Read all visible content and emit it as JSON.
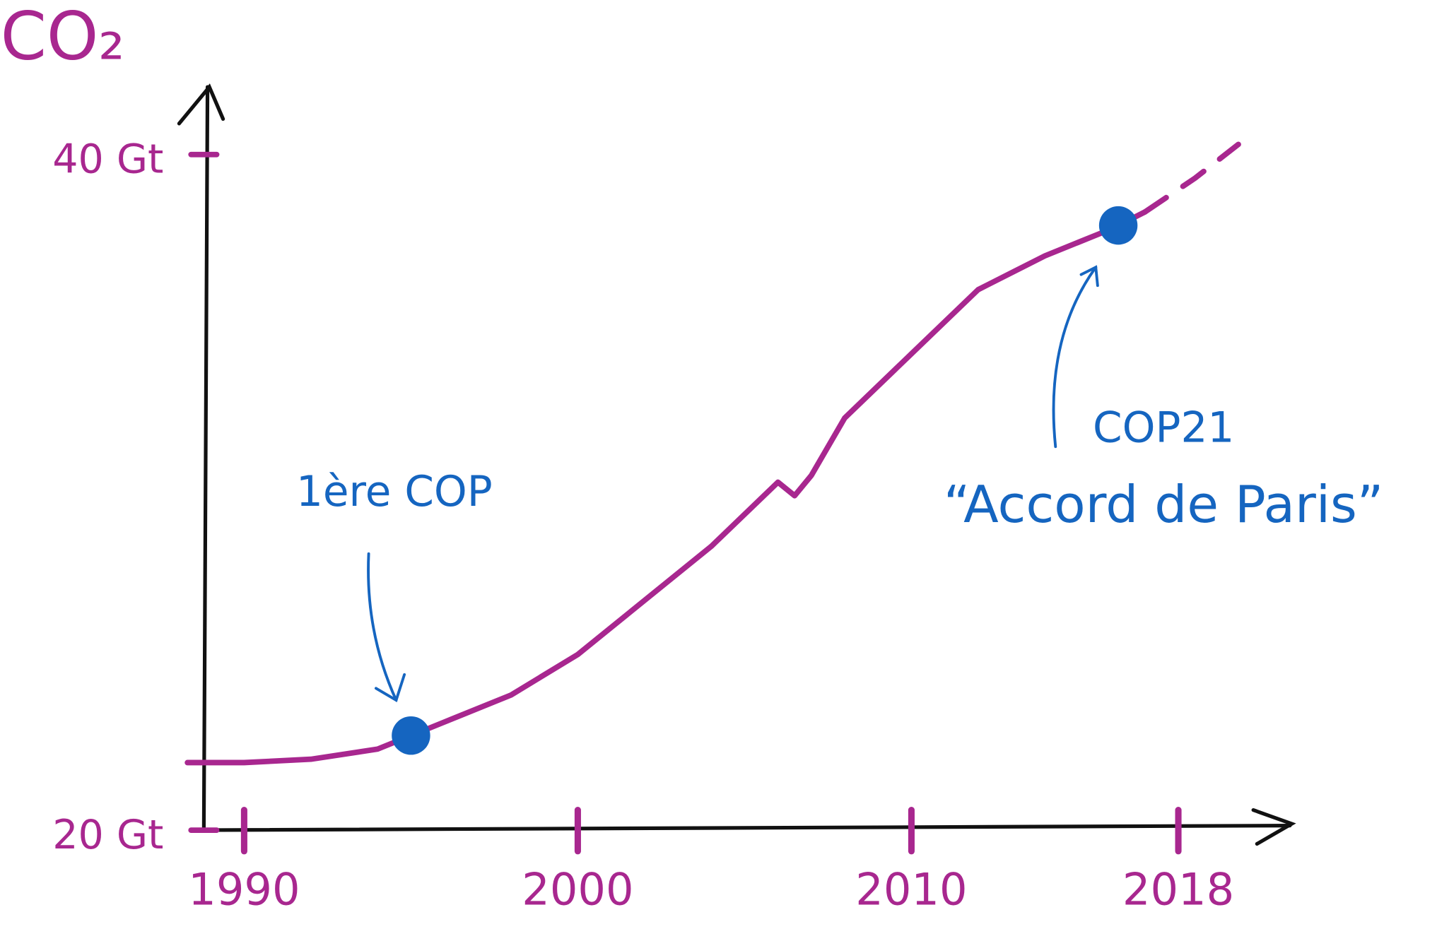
{
  "chart_data": {
    "type": "line",
    "title": "CO₂",
    "series": [
      {
        "color": "#a8278f",
        "x": [
          1988.3,
          1990,
          1992,
          1994,
          1995,
          1996,
          1998,
          2000,
          2002,
          2004,
          2006,
          2006.5,
          2007,
          2008,
          2010,
          2012,
          2014,
          2016,
          2017
        ],
        "values": [
          22.0,
          22.0,
          22.1,
          22.4,
          22.8,
          23.2,
          24.0,
          25.2,
          26.8,
          28.4,
          30.3,
          29.9,
          30.5,
          32.2,
          34.1,
          36.0,
          37.0,
          37.8,
          38.3
        ]
      },
      {
        "color": "#a8278f",
        "dashed": true,
        "x": [
          2017,
          2018.5,
          2019.8
        ],
        "values": [
          38.3,
          39.3,
          40.3
        ]
      }
    ],
    "xlim": [
      1988.6,
      2021.4
    ],
    "ylim": [
      20,
      42
    ],
    "xticks": [
      1990,
      2000,
      2010,
      2018
    ],
    "yticks": [
      {
        "value": 20,
        "label": "20 Gt"
      },
      {
        "value": 40,
        "label": "40 Gt"
      }
    ],
    "annotations": [
      {
        "lines": [
          "1ère COP"
        ],
        "x": 1995,
        "y": 22.8,
        "color": "#1565c0"
      },
      {
        "lines": [
          "COP21",
          "“Accord de Paris”"
        ],
        "x": 2016.2,
        "y": 37.9,
        "color": "#1565c0"
      }
    ]
  }
}
